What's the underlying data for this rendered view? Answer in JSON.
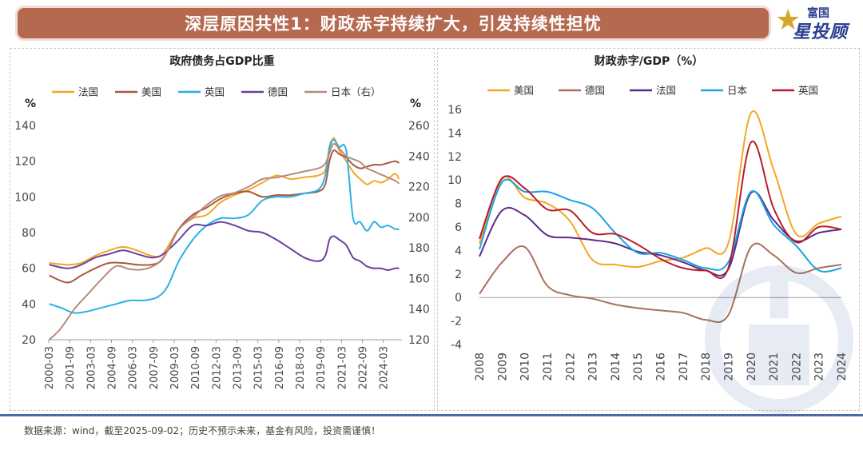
{
  "header": {
    "title": "深层原因共性1：财政赤字持续扩大，引发持续性担忧"
  },
  "logo": {
    "line1": "富国",
    "line2": "星投顾"
  },
  "footnote": "数据来源：wind，截至2025-09-02；历史不预示未来，基金有风险，投资需谨慎！",
  "colors": {
    "banner": "#b56a50",
    "footer_line": "#4c6aa5"
  },
  "chart_data": [
    {
      "type": "line",
      "title": "政府债务占GDP比重",
      "ylabel_left": "%",
      "ylabel_right": "%",
      "ylim": [
        20,
        140
      ],
      "y2lim": [
        120,
        260
      ],
      "yticks": [
        20,
        40,
        60,
        80,
        100,
        120,
        140
      ],
      "y2ticks": [
        120,
        140,
        160,
        180,
        200,
        220,
        240,
        260
      ],
      "xlim": [
        2000.167,
        2025.5
      ],
      "xticks": [
        "2000-03",
        "2001-09",
        "2003-03",
        "2004-09",
        "2006-03",
        "2007-09",
        "2009-03",
        "2010-09",
        "2012-03",
        "2013-09",
        "2015-03",
        "2016-09",
        "2018-03",
        "2019-09",
        "2021-03",
        "2022-09",
        "2024-03"
      ],
      "legend": "top",
      "series": [
        {
          "name": "法国",
          "color": "#f5a623",
          "axis": "left",
          "x": [
            2000.2,
            2001.5,
            2002.5,
            2003.5,
            2004.5,
            2005.5,
            2006.5,
            2007.5,
            2008.2,
            2008.7,
            2009.5,
            2010.5,
            2011.5,
            2012.5,
            2013.5,
            2014.5,
            2015.5,
            2016.5,
            2017.5,
            2018.5,
            2019.5,
            2020.0,
            2020.3,
            2020.6,
            2021.0,
            2021.5,
            2022.0,
            2022.5,
            2023.0,
            2023.5,
            2024.0,
            2024.5,
            2025.0,
            2025.3
          ],
          "y": [
            63,
            62,
            63,
            67,
            70,
            72,
            70,
            67,
            67,
            72,
            82,
            88,
            90,
            97,
            101,
            104,
            108,
            112,
            110,
            111,
            112,
            115,
            125,
            133,
            126,
            120,
            114,
            110,
            107,
            109,
            108,
            110,
            113,
            110
          ]
        },
        {
          "name": "美国",
          "color": "#a85a3c",
          "axis": "left",
          "x": [
            2000.2,
            2001.5,
            2002.5,
            2003.5,
            2004.5,
            2005.5,
            2006.5,
            2007.5,
            2008.2,
            2008.7,
            2009.5,
            2010.5,
            2011.5,
            2012.5,
            2013.5,
            2014.5,
            2015.5,
            2016.5,
            2017.5,
            2018.5,
            2019.5,
            2020.0,
            2020.3,
            2020.6,
            2021.0,
            2021.5,
            2022.0,
            2022.5,
            2023.0,
            2023.5,
            2024.0,
            2024.5,
            2025.0,
            2025.3
          ],
          "y": [
            56,
            52,
            56,
            60,
            63,
            63,
            62,
            62,
            64,
            70,
            82,
            90,
            94,
            99,
            102,
            103,
            100,
            101,
            101,
            102,
            103,
            107,
            120,
            126,
            124,
            122,
            118,
            116,
            117,
            118,
            118,
            119,
            120,
            119
          ]
        },
        {
          "name": "英国",
          "color": "#2bb0e8",
          "axis": "left",
          "x": [
            2000.2,
            2001.0,
            2002.0,
            2003.0,
            2004.0,
            2005.0,
            2006.0,
            2007.0,
            2008.0,
            2008.7,
            2009.5,
            2010.5,
            2011.5,
            2012.5,
            2013.5,
            2014.5,
            2015.5,
            2016.5,
            2017.5,
            2018.5,
            2019.5,
            2020.0,
            2020.3,
            2020.6,
            2021.0,
            2021.5,
            2022.0,
            2022.5,
            2023.0,
            2023.5,
            2024.0,
            2024.5,
            2025.0,
            2025.3
          ],
          "y": [
            40,
            38,
            35,
            36,
            38,
            40,
            42,
            42,
            44,
            50,
            64,
            76,
            84,
            88,
            88,
            90,
            98,
            100,
            100,
            102,
            104,
            112,
            128,
            132,
            128,
            126,
            88,
            86,
            81,
            86,
            83,
            84,
            82,
            82
          ]
        },
        {
          "name": "德国",
          "color": "#6a3fa0",
          "axis": "left",
          "x": [
            2000.2,
            2001.5,
            2002.5,
            2003.5,
            2004.5,
            2005.5,
            2006.5,
            2007.5,
            2008.2,
            2008.7,
            2009.5,
            2010.5,
            2011.5,
            2012.5,
            2013.5,
            2014.5,
            2015.5,
            2016.5,
            2017.5,
            2018.5,
            2019.5,
            2020.0,
            2020.3,
            2020.6,
            2021.0,
            2021.5,
            2022.0,
            2022.5,
            2023.0,
            2023.5,
            2024.0,
            2024.5,
            2025.0,
            2025.3
          ],
          "y": [
            62,
            60,
            62,
            66,
            68,
            70,
            68,
            66,
            67,
            70,
            76,
            84,
            84,
            86,
            84,
            81,
            80,
            76,
            71,
            66,
            64,
            67,
            76,
            78,
            76,
            73,
            66,
            64,
            61,
            60,
            60,
            59,
            60,
            60
          ]
        },
        {
          "name": "日本（右）",
          "color": "#b88a7a",
          "axis": "right",
          "x": [
            2000.2,
            2001.0,
            2002.0,
            2003.0,
            2004.0,
            2005.0,
            2006.0,
            2007.0,
            2008.0,
            2008.7,
            2009.5,
            2010.5,
            2011.5,
            2012.5,
            2013.5,
            2014.5,
            2015.5,
            2016.5,
            2017.5,
            2018.5,
            2019.5,
            2020.0,
            2020.3,
            2020.6,
            2021.0,
            2021.5,
            2022.0,
            2022.5,
            2023.0,
            2023.5,
            2024.0,
            2024.5,
            2025.0,
            2025.3
          ],
          "y": [
            120,
            127,
            140,
            150,
            160,
            168,
            166,
            166,
            170,
            178,
            192,
            200,
            208,
            214,
            216,
            220,
            225,
            226,
            228,
            230,
            232,
            235,
            242,
            248,
            245,
            240,
            238,
            236,
            232,
            230,
            228,
            226,
            224,
            222
          ]
        }
      ]
    },
    {
      "type": "line",
      "title": "财政赤字/GDP（%）",
      "ylim": [
        -4,
        16
      ],
      "yticks": [
        -4,
        -2,
        0,
        2,
        4,
        6,
        8,
        10,
        12,
        14,
        16
      ],
      "xlim": [
        2008,
        2024
      ],
      "xticks": [
        "2008",
        "2009",
        "2010",
        "2011",
        "2012",
        "2013",
        "2014",
        "2015",
        "2016",
        "2017",
        "2018",
        "2019",
        "2020",
        "2021",
        "2022",
        "2023",
        "2024"
      ],
      "legend": "top",
      "series": [
        {
          "name": "美国",
          "color": "#f5a623",
          "x": [
            2008,
            2009,
            2010,
            2011,
            2012,
            2013,
            2014,
            2015,
            2016,
            2017,
            2018,
            2019,
            2020,
            2021,
            2022,
            2023,
            2024
          ],
          "y": [
            4.6,
            10.2,
            8.5,
            8.0,
            6.5,
            3.2,
            2.8,
            2.6,
            3.1,
            3.4,
            4.2,
            4.6,
            15.7,
            10.9,
            5.4,
            6.3,
            6.9
          ]
        },
        {
          "name": "德国",
          "color": "#a8715b",
          "x": [
            2008,
            2009,
            2010,
            2011,
            2012,
            2013,
            2014,
            2015,
            2016,
            2017,
            2018,
            2019,
            2020,
            2021,
            2022,
            2023,
            2024
          ],
          "y": [
            0.3,
            3.0,
            4.3,
            1.0,
            0.2,
            -0.1,
            -0.6,
            -0.9,
            -1.1,
            -1.3,
            -1.9,
            -1.5,
            4.3,
            3.6,
            2.1,
            2.5,
            2.8
          ]
        },
        {
          "name": "法国",
          "color": "#5a2a8a",
          "x": [
            2008,
            2009,
            2010,
            2011,
            2012,
            2013,
            2014,
            2015,
            2016,
            2017,
            2018,
            2019,
            2020,
            2021,
            2022,
            2023,
            2024
          ],
          "y": [
            3.5,
            7.4,
            7.0,
            5.3,
            5.1,
            4.9,
            4.6,
            3.9,
            3.6,
            3.0,
            2.3,
            2.4,
            8.9,
            6.6,
            4.8,
            5.5,
            5.8
          ]
        },
        {
          "name": "日本",
          "color": "#1aa3e0",
          "x": [
            2008,
            2009,
            2010,
            2011,
            2012,
            2013,
            2014,
            2015,
            2016,
            2017,
            2018,
            2019,
            2020,
            2021,
            2022,
            2023,
            2024
          ],
          "y": [
            4.1,
            9.8,
            9.0,
            9.0,
            8.3,
            7.6,
            5.5,
            3.8,
            3.8,
            3.2,
            2.5,
            3.0,
            9.0,
            6.2,
            4.4,
            2.3,
            2.5
          ]
        },
        {
          "name": "英国",
          "color": "#b81c2c",
          "x": [
            2008,
            2009,
            2010,
            2011,
            2012,
            2013,
            2014,
            2015,
            2016,
            2017,
            2018,
            2019,
            2020,
            2021,
            2022,
            2023,
            2024
          ],
          "y": [
            5.0,
            10.1,
            9.3,
            7.5,
            7.4,
            5.5,
            5.4,
            4.5,
            3.3,
            2.5,
            2.3,
            2.5,
            13.2,
            7.6,
            4.7,
            6.0,
            5.8
          ]
        }
      ]
    }
  ]
}
